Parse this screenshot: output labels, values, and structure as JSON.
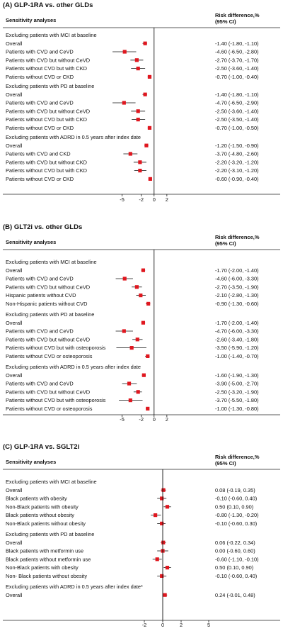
{
  "chart_data": [
    {
      "type": "forest",
      "title": "(A) GLP-1RA vs. other GLDs",
      "header_left": "Sensitivity analyses",
      "header_right_1": "Risk difference,%",
      "header_right_2": "(95% CI)",
      "xlim": [
        -7.5,
        6
      ],
      "ticks": [
        {
          "v": -5,
          "label": "-5"
        },
        {
          "v": -2,
          "label": "-2"
        },
        {
          "v": 0,
          "label": "0"
        },
        {
          "v": 2,
          "label": "2"
        }
      ],
      "groups": [
        {
          "title": "Excluding patients with MCI at baseline",
          "rows": [
            {
              "label": "Overall",
              "est": -1.4,
              "lo": -1.8,
              "hi": -1.1,
              "ci_text": "-1.40 (-1.80, -1.10)"
            },
            {
              "label": "Patients with CVD and CeVD",
              "est": -4.6,
              "lo": -6.5,
              "hi": -2.8,
              "ci_text": "-4.60 (-6.50, -2.80)"
            },
            {
              "label": "Patients with CVD but without CeVD",
              "est": -2.7,
              "lo": -3.7,
              "hi": -1.7,
              "ci_text": "-2.70 (-3.70, -1.70)"
            },
            {
              "label": "Patients without CVD but with CKD",
              "est": -2.5,
              "lo": -3.6,
              "hi": -1.4,
              "ci_text": "-2.50 (-3.60, -1.40)"
            },
            {
              "label": "Patients without CVD or CKD",
              "est": -0.7,
              "lo": -1.0,
              "hi": -0.4,
              "ci_text": "-0.70 (-1.00, -0.40)"
            }
          ]
        },
        {
          "title": "Excluding patients with PD at baseline",
          "rows": [
            {
              "label": "Overall",
              "est": -1.4,
              "lo": -1.8,
              "hi": -1.1,
              "ci_text": "-1.40 (-1.80, -1.10)"
            },
            {
              "label": "Patients with CVD and CeVD",
              "est": -4.7,
              "lo": -6.5,
              "hi": -2.9,
              "ci_text": "-4.70 (-6.50, -2.90)"
            },
            {
              "label": "Patients with CVD but without CeVD",
              "est": -2.5,
              "lo": -3.6,
              "hi": -1.4,
              "ci_text": "-2.50 (-3.60, -1.40)"
            },
            {
              "label": "Patients without CVD but with CKD",
              "est": -2.5,
              "lo": -3.5,
              "hi": -1.4,
              "ci_text": "-2.50 (-3.50, -1.40)"
            },
            {
              "label": "Patients without CVD or CKD",
              "est": -0.7,
              "lo": -1.0,
              "hi": -0.5,
              "ci_text": "-0.70 (-1.00, -0.50)"
            }
          ]
        },
        {
          "title": "Excluding patients with ADRD in 0.5 years after index date",
          "rows": [
            {
              "label": "Overall",
              "est": -1.2,
              "lo": -1.5,
              "hi": -0.9,
              "ci_text": "-1.20 (-1.50, -0.90)"
            },
            {
              "label": "Patients with CVD and CKD",
              "est": -3.7,
              "lo": -4.8,
              "hi": -2.6,
              "ci_text": "-3.70 (-4.80, -2.60)"
            },
            {
              "label": "Patients with CVD but without CKD",
              "est": -2.2,
              "lo": -3.2,
              "hi": -1.2,
              "ci_text": "-2.20 (-3.20, -1.20)"
            },
            {
              "label": "Patients without CVD but with CKD",
              "est": -2.2,
              "lo": -3.1,
              "hi": -1.2,
              "ci_text": "-2.20 (-3.10, -1.20)"
            },
            {
              "label": "Patients without CVD or CKD",
              "est": -0.6,
              "lo": -0.9,
              "hi": -0.4,
              "ci_text": "-0.60 (-0.90, -0.40)"
            }
          ]
        }
      ]
    },
    {
      "type": "forest",
      "title": "(B) GLT2i vs. other GLDs",
      "header_left": "Sensitivity analyses",
      "header_right_1": "Risk difference,%",
      "header_right_2": "(95% CI)",
      "xlim": [
        -7.5,
        6
      ],
      "ticks": [
        {
          "v": -5,
          "label": "-5"
        },
        {
          "v": -2,
          "label": "-2"
        },
        {
          "v": 0,
          "label": "0"
        },
        {
          "v": 2,
          "label": "2"
        }
      ],
      "groups": [
        {
          "title": "Excluding patients with MCI at baseline",
          "rows": [
            {
              "label": "Overall",
              "est": -1.7,
              "lo": -2.0,
              "hi": -1.4,
              "ci_text": "-1.70 (-2.00, -1.40)"
            },
            {
              "label": "Patients with CVD and CeVD",
              "est": -4.6,
              "lo": -6.0,
              "hi": -3.3,
              "ci_text": "-4.60 (-6.00, -3.30)"
            },
            {
              "label": "Patients with CVD but without CeVD",
              "est": -2.7,
              "lo": -3.5,
              "hi": -1.9,
              "ci_text": "-2.70 (-3.50, -1.90)"
            },
            {
              "label": "Hispanic patients without CVD",
              "est": -2.1,
              "lo": -2.8,
              "hi": -1.3,
              "ci_text": "-2.10 (-2.80, -1.30)"
            },
            {
              "label": "Non-Hispanic patients without CVD",
              "est": -0.9,
              "lo": -1.3,
              "hi": -0.6,
              "ci_text": "-0.90 (-1.30, -0.60)"
            }
          ]
        },
        {
          "title": "Excluding patients with PD at baseline",
          "rows": [
            {
              "label": "Overall",
              "est": -1.7,
              "lo": -2.0,
              "hi": -1.4,
              "ci_text": "-1.70 (-2.00, -1.40)"
            },
            {
              "label": "Patients with CVD and CeVD",
              "est": -4.7,
              "lo": -6.0,
              "hi": -3.3,
              "ci_text": "-4.70 (-6.00, -3.30)"
            },
            {
              "label": "Patients with CVD but without CeVD",
              "est": -2.6,
              "lo": -3.4,
              "hi": -1.8,
              "ci_text": "-2.60 (-3.40, -1.80)"
            },
            {
              "label": "Patients without CVD but with osteoporosis",
              "est": -3.5,
              "lo": -5.9,
              "hi": -1.2,
              "ci_text": "-3.50 (-5.90, -1.20)"
            },
            {
              "label": "Patients without CVD or osteoporosis",
              "est": -1.0,
              "lo": -1.4,
              "hi": -0.7,
              "ci_text": "-1.00 (-1.40, -0.70)"
            }
          ]
        },
        {
          "title": "Excluding patients with ADRD in 0.5 years after index date",
          "rows": [
            {
              "label": "Overall",
              "est": -1.6,
              "lo": -1.9,
              "hi": -1.3,
              "ci_text": "-1.60 (-1.90, -1.30)"
            },
            {
              "label": "Patients with CVD and CeVD",
              "est": -3.9,
              "lo": -5.0,
              "hi": -2.7,
              "ci_text": "-3.90 (-5.00, -2.70)"
            },
            {
              "label": "Patients with CVD but without CeVD",
              "est": -2.5,
              "lo": -3.2,
              "hi": -1.9,
              "ci_text": "-2.50 (-3.20, -1.90)"
            },
            {
              "label": "Patients without CVD but with osteoporosis",
              "est": -3.7,
              "lo": -5.5,
              "hi": -1.8,
              "ci_text": "-3.70 (-5.50, -1.80)"
            },
            {
              "label": "Patients without CVD or osteoporosis",
              "est": -1.0,
              "lo": -1.3,
              "hi": -0.8,
              "ci_text": "-1.00 (-1.30, -0.80)"
            }
          ]
        }
      ]
    },
    {
      "type": "forest",
      "title": "(C) GLP-1RA vs. SGLT2i",
      "header_left": "Sensitivity analyses",
      "header_right_1": "Risk difference,%",
      "header_right_2": "(95% CI)",
      "xlim": [
        -6,
        8
      ],
      "ticks": [
        {
          "v": -2,
          "label": "-2"
        },
        {
          "v": 0,
          "label": "0"
        },
        {
          "v": 2,
          "label": "2"
        },
        {
          "v": 5,
          "label": "5"
        }
      ],
      "groups": [
        {
          "title": "Excluding patients with MCI at baseline",
          "rows": [
            {
              "label": "Overall",
              "est": 0.08,
              "lo": -0.19,
              "hi": 0.35,
              "ci_text": "0.08 (-0.19, 0.35)"
            },
            {
              "label": "Black patients with obesity",
              "est": -0.1,
              "lo": -0.6,
              "hi": 0.4,
              "ci_text": "-0.10 (-0.60, 0.40)"
            },
            {
              "label": "Non-Black patients with obesity",
              "est": 0.5,
              "lo": 0.1,
              "hi": 0.9,
              "ci_text": "0.50 (0.10, 0.90)"
            },
            {
              "label": "Black patients without obesity",
              "est": -0.8,
              "lo": -1.3,
              "hi": -0.2,
              "ci_text": "-0.80 (-1.30, -0.20)"
            },
            {
              "label": "Non-Black patients without obesity",
              "est": -0.1,
              "lo": -0.6,
              "hi": 0.3,
              "ci_text": "-0.10 (-0.60, 0.30)"
            }
          ]
        },
        {
          "title": "Excluding patients with PD at baseline",
          "rows": [
            {
              "label": "Overall",
              "est": 0.06,
              "lo": -0.22,
              "hi": 0.34,
              "ci_text": "0.06 (-0.22, 0.34)"
            },
            {
              "label": "Black patients with metformin use",
              "est": 0.0,
              "lo": -0.6,
              "hi": 0.6,
              "ci_text": "0.00 (-0.60, 0.60)"
            },
            {
              "label": "Black patients without metformin use",
              "est": -0.6,
              "lo": -1.1,
              "hi": -0.1,
              "ci_text": "-0.60 (-1.10, -0.10)"
            },
            {
              "label": "Non-Black patients with obesity",
              "est": 0.5,
              "lo": 0.1,
              "hi": 0.9,
              "ci_text": "0.50 (0.10, 0.90)"
            },
            {
              "label": "Non- Black patients without obesity",
              "est": -0.1,
              "lo": -0.6,
              "hi": 0.4,
              "ci_text": "-0.10 (-0.60, 0.40)"
            }
          ]
        },
        {
          "title": "Excluding patients with ADRD in 0.5 years after index date*",
          "rows": [
            {
              "label": "Overall",
              "est": 0.24,
              "lo": -0.01,
              "hi": 0.48,
              "ci_text": "0.24 (-0.01, 0.48)"
            }
          ]
        }
      ]
    }
  ]
}
